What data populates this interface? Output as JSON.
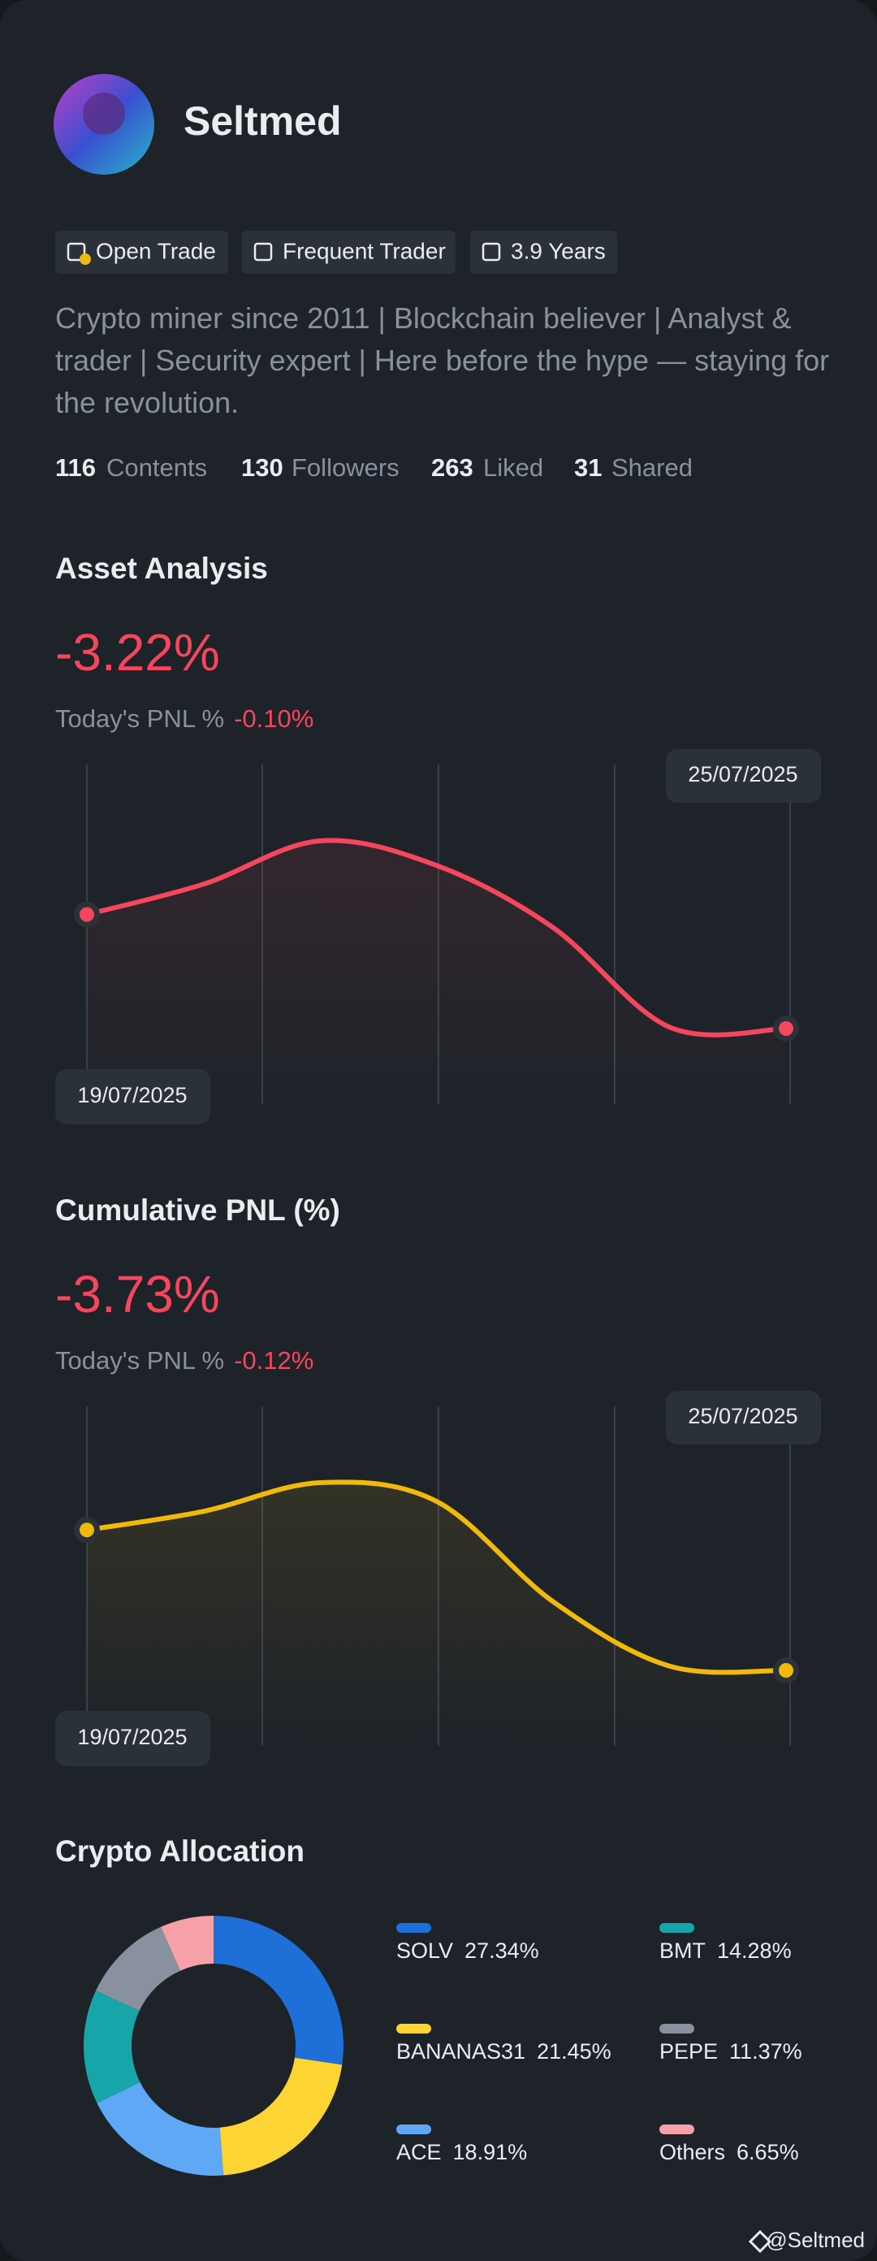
{
  "profile": {
    "name": "Seltmed",
    "tags": [
      "Open Trade",
      "Frequent Trader",
      "3.9 Years"
    ],
    "bio": "Crypto miner since 2011 | Blockchain believer | Analyst & trader | Security expert | Here before the hype — staying for the revolution.",
    "stats": [
      {
        "value": 116,
        "label": "Contents"
      },
      {
        "value": 130,
        "label": "Followers"
      },
      {
        "value": 263,
        "label": "Liked"
      },
      {
        "value": 31,
        "label": "Shared"
      }
    ]
  },
  "chart_data": [
    {
      "type": "line",
      "title": "Asset Analysis",
      "headline": "-3.22%",
      "today_label": "Today's PNL %",
      "today_value": "-0.10%",
      "categories": [
        "19/07/2025",
        null,
        null,
        null,
        null,
        null,
        "25/07/2025"
      ],
      "series": [
        {
          "color": "#f6465d",
          "values": [
            -0.06,
            0.78,
            1.98,
            1.3,
            -0.42,
            -3.18,
            -3.22
          ]
        }
      ]
    },
    {
      "type": "line",
      "title": "Cumulative PNL (%)",
      "headline": "-3.73%",
      "today_label": "Today's PNL %",
      "today_value": "-0.12%",
      "categories": [
        "19/07/2025",
        null,
        null,
        null,
        null,
        null,
        "25/07/2025"
      ],
      "series": [
        {
          "color": "#f0b90b",
          "values": [
            0.19,
            0.71,
            1.51,
            0.99,
            -1.81,
            -3.61,
            -3.73
          ]
        }
      ]
    },
    {
      "type": "pie",
      "title": "Crypto Allocation",
      "categories": [
        "SOLV",
        "BANANAS31",
        "ACE",
        "BMT",
        "PEPE",
        "Others"
      ],
      "values": [
        27.34,
        21.45,
        18.91,
        14.28,
        11.37,
        6.65
      ],
      "value_labels": [
        "27.34%",
        "21.45%",
        "18.91%",
        "14.28%",
        "11.37%",
        "6.65%"
      ],
      "colors": [
        "#1f6fd9",
        "#fcd535",
        "#5ea8f5",
        "#18a5a9",
        "#8a919e",
        "#f6a0a8"
      ]
    }
  ],
  "footer": "@Seltmed"
}
